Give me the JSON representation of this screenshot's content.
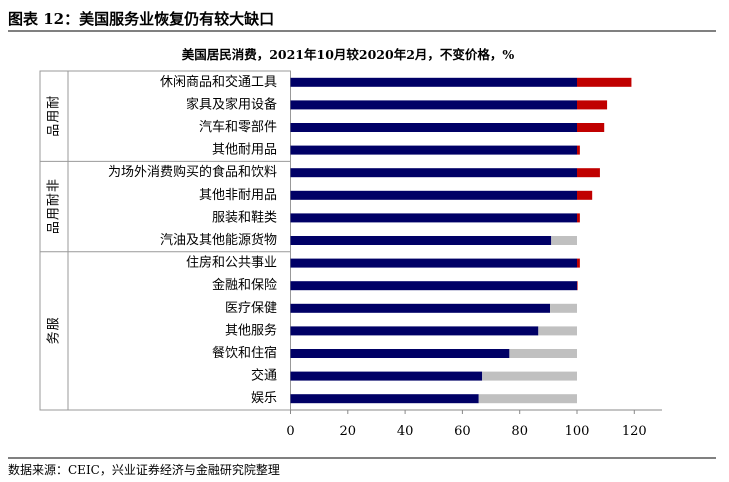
{
  "figure_title": "图表 12：美国服务业恢复仍有较大缺口",
  "source": "数据来源：CEIC，兴业证券经济与金融研究院整理",
  "chart_data": {
    "type": "bar",
    "orientation": "horizontal",
    "stacked": true,
    "title": "美国居民消费，2021年10月较2020年2月，不变价格，%",
    "xlim": [
      0,
      130
    ],
    "xticks": [
      "0",
      "20",
      "40",
      "60",
      "80",
      "100",
      "120"
    ],
    "groups": [
      {
        "label": "耐用品",
        "categories": [
          "休闲商品和交通工具",
          "家具及家用设备",
          "汽车和零部件",
          "其他耐用品"
        ]
      },
      {
        "label": "非耐用品",
        "categories": [
          "为场外消费购买的食品和饮料",
          "其他非耐用品",
          "服装和鞋类",
          "汽油及其他能源货物"
        ]
      },
      {
        "label": "服务",
        "categories": [
          "住房和公共事业",
          "金融和保险",
          "医疗保健",
          "其他服务",
          "餐饮和住宿",
          "交通",
          "娱乐"
        ]
      }
    ],
    "categories": [
      "休闲商品和交通工具",
      "家具及家用设备",
      "汽车和零部件",
      "其他耐用品",
      "为场外消费购买的食品和饮料",
      "其他非耐用品",
      "服装和鞋类",
      "汽油及其他能源货物",
      "住房和公共事业",
      "金融和保险",
      "医疗保健",
      "其他服务",
      "餐饮和住宿",
      "交通",
      "娱乐"
    ],
    "values": [
      119,
      110.5,
      109.5,
      101,
      108,
      105.3,
      101,
      91,
      101,
      100.2,
      90.6,
      86.5,
      76.4,
      66.9,
      65.7
    ],
    "baseline": 100,
    "colors": {
      "level": "#000066",
      "above_baseline": "#c00000",
      "gap_to_baseline": "#c0c0c0"
    }
  }
}
